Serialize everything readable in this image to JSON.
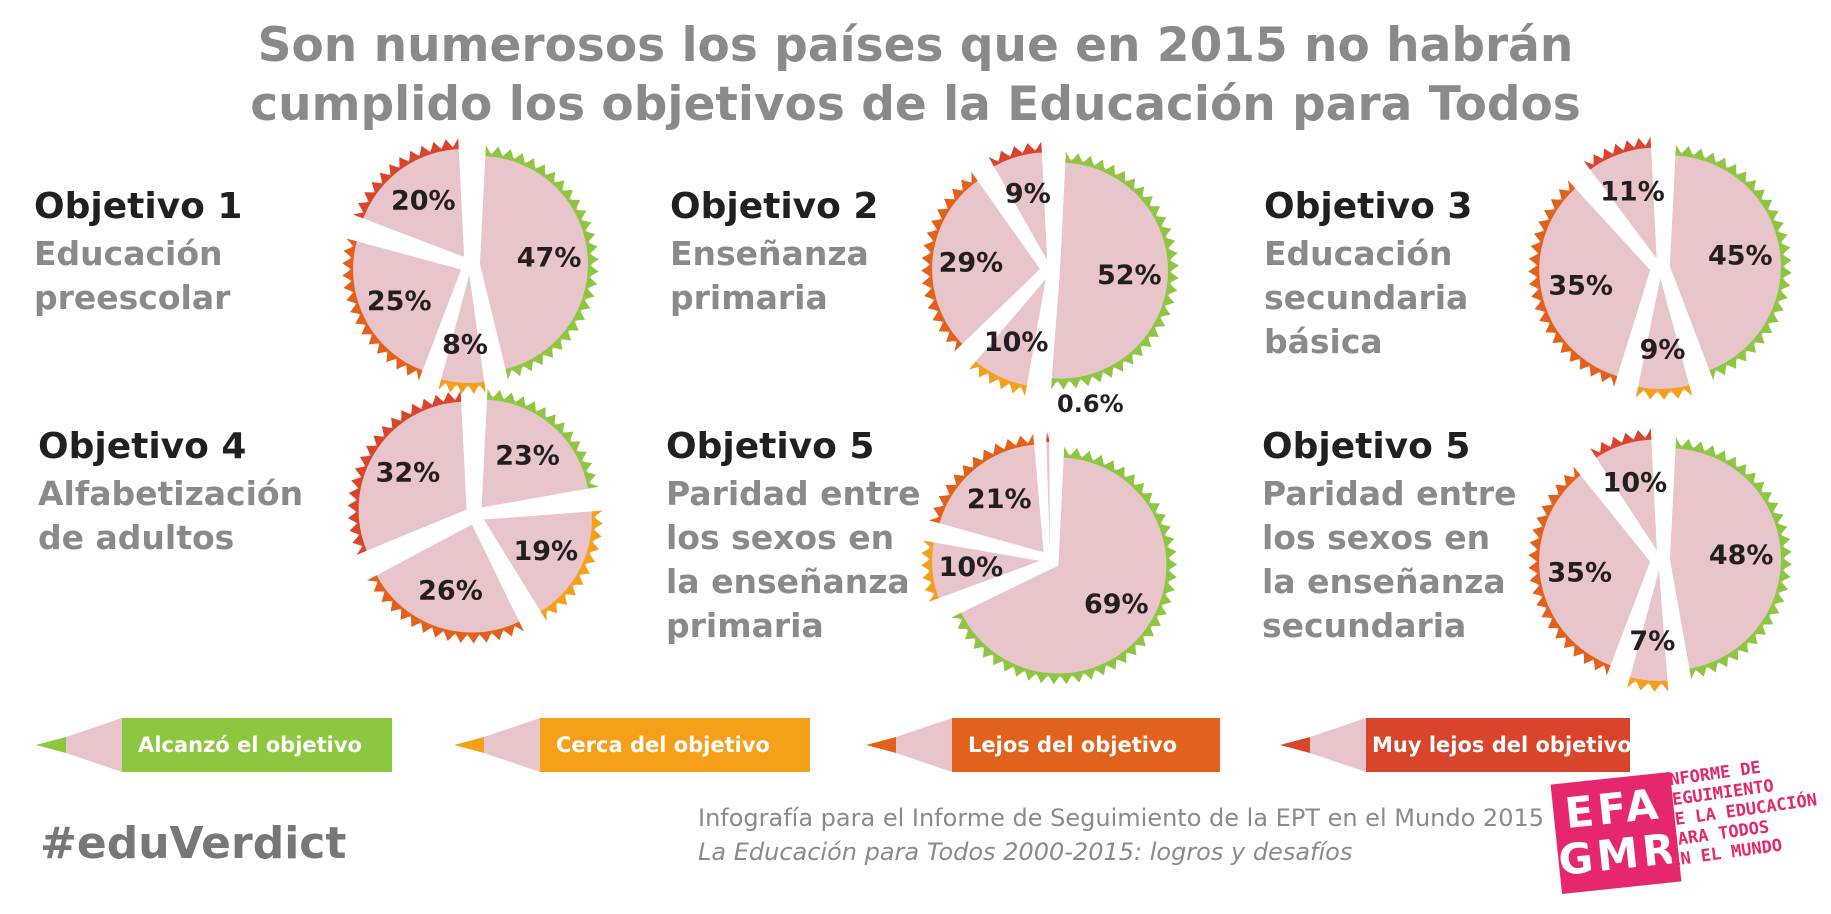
{
  "title": {
    "line1": "Son numerosos los países que en 2015 no habrán",
    "line2": "cumplido los objetivos de la Educación para Todos"
  },
  "colors": {
    "alcanzo": "#8dc63f",
    "cerca": "#f6a01a",
    "lejos": "#e2621b",
    "muy_lejos": "#d9452a",
    "slice_fill": "#e8c4cb"
  },
  "legend": [
    {
      "label": "Alcanzó el objetivo",
      "color": "#8dc63f"
    },
    {
      "label": "Cerca del objetivo",
      "color": "#f6a01a"
    },
    {
      "label": "Lejos del objetivo",
      "color": "#e2621b"
    },
    {
      "label": "Muy lejos del objetivo",
      "color": "#d9452a"
    }
  ],
  "chart_data": [
    {
      "type": "pie",
      "title": "Objetivo 1",
      "subtitle": [
        "Educación",
        "preescolar"
      ],
      "categories": [
        "Alcanzó el objetivo",
        "Cerca del objetivo",
        "Lejos del objetivo",
        "Muy lejos del objetivo"
      ],
      "values": [
        47,
        8,
        25,
        20
      ],
      "labels": [
        "47%",
        "8%",
        "25%",
        "20%"
      ]
    },
    {
      "type": "pie",
      "title": "Objetivo 2",
      "subtitle": [
        "Enseñanza",
        "primaria"
      ],
      "categories": [
        "Alcanzó el objetivo",
        "Cerca del objetivo",
        "Lejos del objetivo",
        "Muy lejos del objetivo"
      ],
      "values": [
        52,
        10,
        29,
        9
      ],
      "labels": [
        "52%",
        "10%",
        "29%",
        "9%"
      ]
    },
    {
      "type": "pie",
      "title": "Objetivo 3",
      "subtitle": [
        "Educación",
        "secundaria",
        "básica"
      ],
      "categories": [
        "Alcanzó el objetivo",
        "Cerca del objetivo",
        "Lejos del objetivo",
        "Muy lejos del objetivo"
      ],
      "values": [
        45,
        9,
        35,
        11
      ],
      "labels": [
        "45%",
        "9%",
        "35%",
        "11%"
      ]
    },
    {
      "type": "pie",
      "title": "Objetivo 4",
      "subtitle": [
        "Alfabetización",
        "de adultos"
      ],
      "categories": [
        "Alcanzó el objetivo",
        "Cerca del objetivo",
        "Lejos del objetivo",
        "Muy lejos del objetivo"
      ],
      "values": [
        23,
        19,
        26,
        32
      ],
      "labels": [
        "23%",
        "19%",
        "26%",
        "32%"
      ]
    },
    {
      "type": "pie",
      "title": "Objetivo 5",
      "subtitle": [
        "Paridad entre",
        "los sexos en",
        "la enseñanza",
        "primaria"
      ],
      "categories": [
        "Alcanzó el objetivo",
        "Cerca del objetivo",
        "Lejos del objetivo",
        "Muy lejos del objetivo"
      ],
      "values": [
        69,
        10,
        21,
        0.6
      ],
      "labels": [
        "69%",
        "10%",
        "21%",
        "0.6%"
      ]
    },
    {
      "type": "pie",
      "title": "Objetivo 5",
      "subtitle": [
        "Paridad entre",
        "los sexos en",
        "la enseñanza",
        "secundaria"
      ],
      "categories": [
        "Alcanzó el objetivo",
        "Cerca del objetivo",
        "Lejos del objetivo",
        "Muy lejos del objetivo"
      ],
      "values": [
        48,
        7,
        35,
        10
      ],
      "labels": [
        "48%",
        "7%",
        "35%",
        "10%"
      ]
    }
  ],
  "footer": {
    "hashtag": "#eduVerdict",
    "credit_line1": "Infografía para el Informe de Seguimiento de la EPT en el Mundo 2015",
    "credit_line2": "La Educación para Todos 2000-2015: logros y desafíos",
    "logo_line1": "EFA",
    "logo_line2": "GMR",
    "logo_text": [
      "INFORME DE",
      "SEGUIMIENTO",
      "DE LA EDUCACIÓN",
      "PARA TODOS",
      "EN EL MUNDO"
    ],
    "logo_icon": "efa-gmr-logo"
  }
}
